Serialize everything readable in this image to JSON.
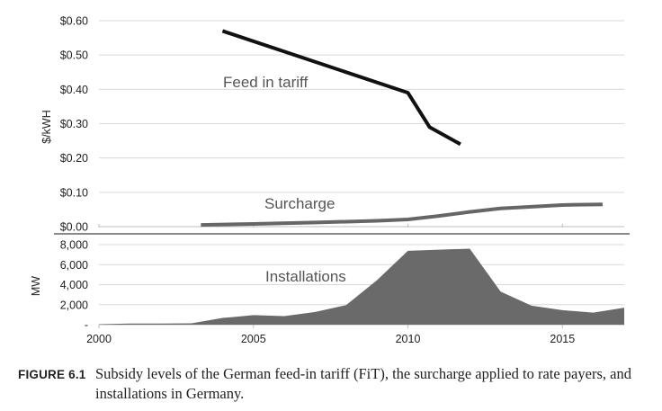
{
  "chart_data": [
    {
      "type": "line",
      "ylabel": "$/kWH",
      "ylim": [
        0,
        0.6
      ],
      "yticks": [
        0,
        0.1,
        0.2,
        0.3,
        0.4,
        0.5,
        0.6
      ],
      "ytick_labels": [
        "$0.00",
        "$0.10",
        "$0.20",
        "$0.30",
        "$0.40",
        "$0.50",
        "$0.60"
      ],
      "grid": true,
      "series": [
        {
          "name": "Feed in tariff",
          "color": "#111111",
          "x": [
            2004,
            2010,
            2010.7,
            2011.7
          ],
          "y": [
            0.57,
            0.39,
            0.29,
            0.24
          ]
        },
        {
          "name": "Surcharge",
          "color": "#666666",
          "x": [
            2003.3,
            2005,
            2007,
            2009,
            2010,
            2011,
            2012,
            2013,
            2014,
            2015,
            2016.3
          ],
          "y": [
            0.005,
            0.008,
            0.012,
            0.017,
            0.021,
            0.031,
            0.043,
            0.053,
            0.058,
            0.063,
            0.065
          ]
        }
      ]
    },
    {
      "type": "area",
      "ylabel": "MW",
      "ylim": [
        0,
        8000
      ],
      "yticks": [
        0,
        2000,
        4000,
        6000,
        8000
      ],
      "ytick_labels": [
        "-",
        "2,000",
        "4,000",
        "6,000",
        "8,000"
      ],
      "grid": true,
      "xlim": [
        2000,
        2017
      ],
      "xticks": [
        2000,
        2005,
        2010,
        2015
      ],
      "xtick_labels": [
        "2000",
        "2005",
        "2010",
        "2015"
      ],
      "series": [
        {
          "name": "Installations",
          "color": "#6a6a6a",
          "x": [
            2000,
            2001,
            2002,
            2003,
            2004,
            2005,
            2006,
            2007,
            2008,
            2009,
            2010,
            2011,
            2012,
            2013,
            2014,
            2015,
            2016,
            2017
          ],
          "y": [
            40,
            110,
            110,
            140,
            670,
            950,
            850,
            1270,
            1950,
            4450,
            7380,
            7490,
            7600,
            3300,
            1900,
            1450,
            1200,
            1700
          ]
        }
      ]
    }
  ],
  "caption": {
    "label": "FIGURE 6.1",
    "text": "Subsidy levels of the German feed-in tariff (FiT), the surcharge applied to rate payers, and installations in Germany."
  }
}
